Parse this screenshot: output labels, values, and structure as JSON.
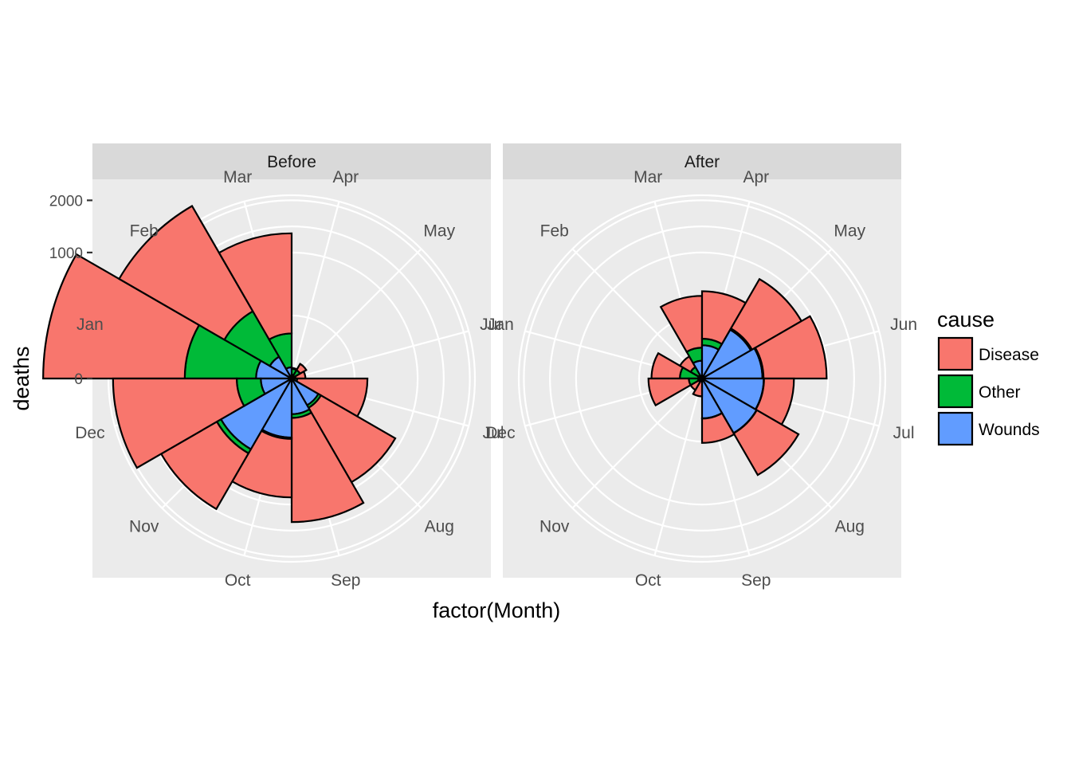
{
  "chart_data": {
    "type": "polar-area",
    "xlabel": "factor(Month)",
    "ylabel": "deaths",
    "y_scale": "sqrt",
    "y_ticks": [
      0,
      1000,
      2000
    ],
    "y_tick_labels": [
      "0",
      "1000",
      "2000"
    ],
    "months": [
      "Jan",
      "Feb",
      "Mar",
      "Apr",
      "May",
      "Jun",
      "Jul",
      "Aug",
      "Sep",
      "Oct",
      "Nov",
      "Dec"
    ],
    "legend": {
      "title": "cause",
      "position": "right",
      "entries": [
        {
          "label": "Disease",
          "color": "#F8766D"
        },
        {
          "label": "Other",
          "color": "#00BA38"
        },
        {
          "label": "Wounds",
          "color": "#619CFF"
        }
      ]
    },
    "facets": [
      {
        "label": "Before",
        "series": [
          {
            "name": "Disease",
            "values": [
              3170,
              2120,
              1200,
              1,
              12,
              11,
              360,
              830,
              1200,
              660,
              960,
              1820
            ]
          },
          {
            "name": "Other",
            "values": [
              640,
              340,
              120,
              5,
              6,
              1,
              2,
              12,
              18,
              10,
              50,
              130
            ]
          },
          {
            "name": "Wounds",
            "values": [
              80,
              40,
              8,
              1,
              0,
              0,
              0,
              60,
              80,
              220,
              420,
              60
            ]
          }
        ]
      },
      {
        "label": "After",
        "series": [
          {
            "name": "Disease",
            "values": [
              130,
              30,
              370,
              380,
              620,
              740,
              290,
              530,
              160,
              20,
              10,
              170
            ]
          },
          {
            "name": "Other",
            "values": [
              30,
              10,
              40,
              30,
              10,
              8,
              2,
              2,
              1,
              0,
              0,
              10
            ]
          },
          {
            "name": "Wounds",
            "values": [
              1,
              1,
              20,
              70,
              200,
              230,
              240,
              250,
              100,
              0,
              1,
              1
            ]
          }
        ]
      }
    ]
  }
}
